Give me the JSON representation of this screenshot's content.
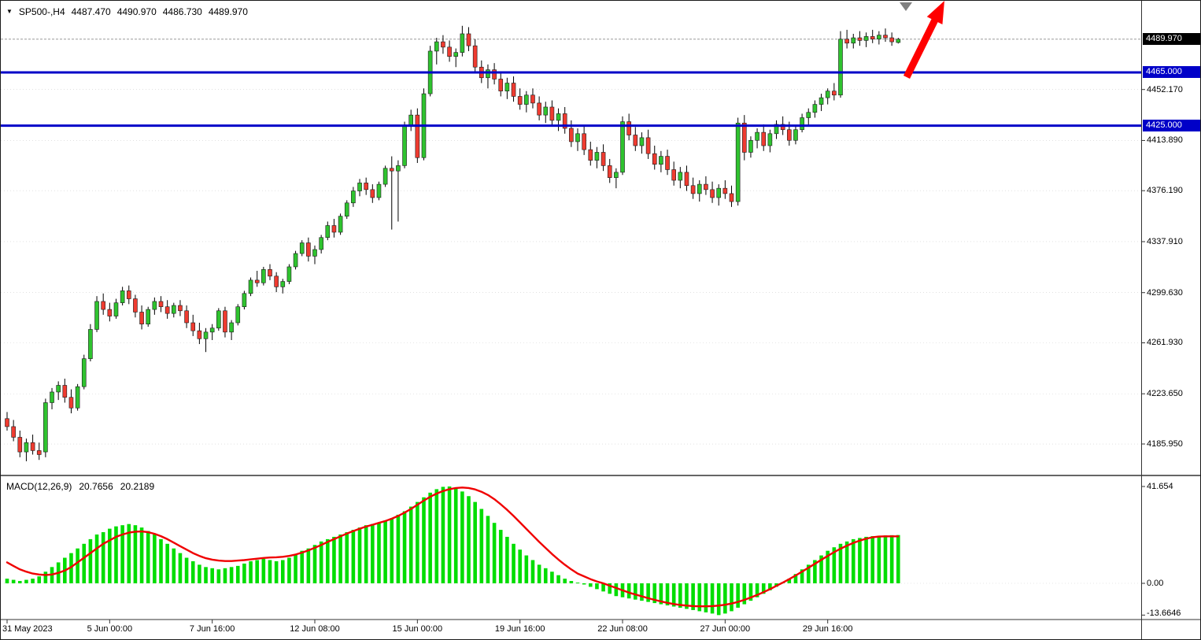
{
  "header": {
    "dropdown_glyph": "▼",
    "symbol_period": "SP500-,H4",
    "open": "4487.470",
    "high": "4490.970",
    "low": "4486.730",
    "close": "4489.970"
  },
  "price_axis": {
    "tick_labels": [
      "4452.170",
      "4413.890",
      "4376.190",
      "4337.910",
      "4299.630",
      "4261.930",
      "4223.650",
      "4185.950"
    ],
    "current_tag": "4489.970",
    "level_tags": [
      "4465.000",
      "4425.000"
    ]
  },
  "macd_panel": {
    "label": "MACD(12,26,9)",
    "macd_value": "20.7656",
    "signal_value": "20.2189",
    "axis_labels": [
      "41.654",
      "0.00",
      "-13.6646"
    ]
  },
  "x_axis": {
    "labels": [
      "31 May 2023",
      "5 Jun 00:00",
      "7 Jun 16:00",
      "12 Jun 08:00",
      "15 Jun 00:00",
      "19 Jun 16:00",
      "22 Jun 08:00",
      "27 Jun 00:00",
      "29 Jun 16:00"
    ]
  },
  "colors": {
    "up": "#2fc32f",
    "down": "#ef3b30",
    "wick": "#000000",
    "candle_border": "#1a1a1a",
    "level_line": "#0000c8",
    "histogram": "#00dd00",
    "signal": "#f00000",
    "current_price_line": "#9a9a9a",
    "grid": "#cfcfcf",
    "axis_line": "#333333",
    "tag_current_bg": "#000000",
    "tag_level_bg": "#0000c8",
    "arrow": "#ff0000",
    "marker": "#808080"
  },
  "chart_data": {
    "type": "candlestick",
    "symbol": "SP500-",
    "timeframe": "H4",
    "title": "SP500-,H4",
    "current_price": 4489.97,
    "last_bar_ohlc": [
      4487.47,
      4490.97,
      4486.73,
      4489.97
    ],
    "levels": [
      4465.0,
      4425.0
    ],
    "y_ticks": [
      4452.17,
      4413.89,
      4376.19,
      4337.91,
      4299.63,
      4261.93,
      4223.65,
      4185.95
    ],
    "y_range_hint": [
      4170,
      4515
    ],
    "x_tick_labels": [
      "31 May 2023",
      "5 Jun 00:00",
      "7 Jun 16:00",
      "12 Jun 08:00",
      "15 Jun 00:00",
      "19 Jun 16:00",
      "22 Jun 08:00",
      "27 Jun 00:00",
      "29 Jun 16:00"
    ],
    "x_tick_bar_indexes": [
      0,
      16,
      32,
      48,
      64,
      80,
      96,
      112,
      128
    ],
    "candles": [
      [
        4205,
        4210,
        4196,
        4199
      ],
      [
        4199,
        4204,
        4188,
        4191
      ],
      [
        4191,
        4196,
        4176,
        4180
      ],
      [
        4180,
        4190,
        4173,
        4187
      ],
      [
        4187,
        4193,
        4178,
        4181
      ],
      [
        4181,
        4187,
        4174,
        4178
      ],
      [
        4180,
        4220,
        4176,
        4217
      ],
      [
        4217,
        4228,
        4212,
        4225
      ],
      [
        4225,
        4233,
        4219,
        4230
      ],
      [
        4230,
        4235,
        4217,
        4221
      ],
      [
        4221,
        4227,
        4209,
        4213
      ],
      [
        4213,
        4231,
        4211,
        4229
      ],
      [
        4229,
        4253,
        4227,
        4250
      ],
      [
        4250,
        4276,
        4248,
        4272
      ],
      [
        4272,
        4297,
        4270,
        4293
      ],
      [
        4293,
        4299,
        4283,
        4287
      ],
      [
        4287,
        4292,
        4278,
        4282
      ],
      [
        4282,
        4295,
        4280,
        4292
      ],
      [
        4292,
        4304,
        4290,
        4301
      ],
      [
        4301,
        4305,
        4291,
        4295
      ],
      [
        4295,
        4298,
        4281,
        4285
      ],
      [
        4285,
        4290,
        4272,
        4276
      ],
      [
        4276,
        4289,
        4274,
        4287
      ],
      [
        4287,
        4296,
        4283,
        4293
      ],
      [
        4293,
        4297,
        4285,
        4289
      ],
      [
        4289,
        4294,
        4280,
        4284
      ],
      [
        4284,
        4292,
        4281,
        4290
      ],
      [
        4290,
        4294,
        4282,
        4286
      ],
      [
        4286,
        4290,
        4273,
        4277
      ],
      [
        4277,
        4283,
        4267,
        4271
      ],
      [
        4271,
        4277,
        4261,
        4265
      ],
      [
        4265,
        4273,
        4255,
        4270
      ],
      [
        4270,
        4276,
        4264,
        4273
      ],
      [
        4273,
        4288,
        4271,
        4286
      ],
      [
        4286,
        4289,
        4266,
        4270
      ],
      [
        4270,
        4279,
        4264,
        4277
      ],
      [
        4277,
        4291,
        4275,
        4289
      ],
      [
        4289,
        4301,
        4287,
        4299
      ],
      [
        4299,
        4311,
        4297,
        4309
      ],
      [
        4309,
        4316,
        4304,
        4307
      ],
      [
        4307,
        4319,
        4305,
        4317
      ],
      [
        4317,
        4321,
        4309,
        4312
      ],
      [
        4312,
        4315,
        4300,
        4304
      ],
      [
        4304,
        4310,
        4299,
        4308
      ],
      [
        4308,
        4321,
        4306,
        4319
      ],
      [
        4319,
        4331,
        4317,
        4329
      ],
      [
        4329,
        4339,
        4327,
        4337
      ],
      [
        4337,
        4341,
        4323,
        4327
      ],
      [
        4327,
        4335,
        4321,
        4332
      ],
      [
        4332,
        4343,
        4329,
        4341
      ],
      [
        4341,
        4353,
        4339,
        4350
      ],
      [
        4350,
        4355,
        4341,
        4345
      ],
      [
        4345,
        4359,
        4343,
        4357
      ],
      [
        4357,
        4369,
        4355,
        4367
      ],
      [
        4367,
        4379,
        4364,
        4376
      ],
      [
        4376,
        4385,
        4372,
        4382
      ],
      [
        4382,
        4386,
        4373,
        4377
      ],
      [
        4377,
        4381,
        4367,
        4371
      ],
      [
        4371,
        4383,
        4369,
        4381
      ],
      [
        4381,
        4395,
        4379,
        4393
      ],
      [
        4393,
        4402,
        4347,
        4391
      ],
      [
        4391,
        4399,
        4353,
        4395
      ],
      [
        4395,
        4428,
        4393,
        4425
      ],
      [
        4425,
        4437,
        4421,
        4433
      ],
      [
        4433,
        4438,
        4397,
        4401
      ],
      [
        4401,
        4453,
        4399,
        4449
      ],
      [
        4449,
        4485,
        4447,
        4481
      ],
      [
        4481,
        4491,
        4471,
        4488
      ],
      [
        4488,
        4493,
        4479,
        4484
      ],
      [
        4484,
        4489,
        4473,
        4477
      ],
      [
        4477,
        4483,
        4469,
        4480
      ],
      [
        4480,
        4500,
        4477,
        4494
      ],
      [
        4494,
        4499,
        4481,
        4485
      ],
      [
        4485,
        4490,
        4465,
        4469
      ],
      [
        4469,
        4474,
        4457,
        4461
      ],
      [
        4461,
        4471,
        4453,
        4467
      ],
      [
        4467,
        4472,
        4456,
        4460
      ],
      [
        4460,
        4465,
        4447,
        4451
      ],
      [
        4451,
        4461,
        4445,
        4457
      ],
      [
        4457,
        4462,
        4443,
        4447
      ],
      [
        4447,
        4453,
        4437,
        4441
      ],
      [
        4441,
        4451,
        4435,
        4448
      ],
      [
        4448,
        4453,
        4438,
        4442
      ],
      [
        4442,
        4447,
        4429,
        4433
      ],
      [
        4433,
        4443,
        4427,
        4439
      ],
      [
        4439,
        4444,
        4425,
        4429
      ],
      [
        4429,
        4438,
        4421,
        4434
      ],
      [
        4434,
        4439,
        4419,
        4423
      ],
      [
        4423,
        4429,
        4409,
        4413
      ],
      [
        4413,
        4423,
        4406,
        4419
      ],
      [
        4419,
        4425,
        4403,
        4407
      ],
      [
        4407,
        4413,
        4395,
        4399
      ],
      [
        4399,
        4409,
        4393,
        4405
      ],
      [
        4405,
        4411,
        4391,
        4395
      ],
      [
        4395,
        4400,
        4382,
        4386
      ],
      [
        4386,
        4393,
        4378,
        4390
      ],
      [
        4390,
        4432,
        4388,
        4428
      ],
      [
        4428,
        4434,
        4414,
        4418
      ],
      [
        4418,
        4424,
        4406,
        4410
      ],
      [
        4410,
        4420,
        4404,
        4416
      ],
      [
        4416,
        4422,
        4400,
        4404
      ],
      [
        4404,
        4410,
        4392,
        4396
      ],
      [
        4396,
        4406,
        4390,
        4402
      ],
      [
        4402,
        4407,
        4388,
        4392
      ],
      [
        4392,
        4398,
        4380,
        4384
      ],
      [
        4384,
        4394,
        4378,
        4390
      ],
      [
        4390,
        4395,
        4376,
        4380
      ],
      [
        4380,
        4386,
        4370,
        4374
      ],
      [
        4374,
        4384,
        4368,
        4381
      ],
      [
        4381,
        4387,
        4373,
        4377
      ],
      [
        4377,
        4383,
        4367,
        4371
      ],
      [
        4371,
        4381,
        4365,
        4378
      ],
      [
        4378,
        4384,
        4370,
        4374
      ],
      [
        4374,
        4380,
        4364,
        4368
      ],
      [
        4368,
        4431,
        4365,
        4427
      ],
      [
        4427,
        4433,
        4399,
        4405
      ],
      [
        4405,
        4417,
        4401,
        4414
      ],
      [
        4414,
        4423,
        4408,
        4420
      ],
      [
        4420,
        4426,
        4406,
        4410
      ],
      [
        4410,
        4422,
        4405,
        4419
      ],
      [
        4419,
        4429,
        4415,
        4426
      ],
      [
        4426,
        4432,
        4418,
        4422
      ],
      [
        4422,
        4428,
        4410,
        4414
      ],
      [
        4414,
        4425,
        4411,
        4422
      ],
      [
        4422,
        4434,
        4420,
        4431
      ],
      [
        4431,
        4438,
        4425,
        4435
      ],
      [
        4435,
        4444,
        4431,
        4441
      ],
      [
        4441,
        4449,
        4436,
        4446
      ],
      [
        4446,
        4453,
        4441,
        4451
      ],
      [
        4451,
        4457,
        4444,
        4448
      ],
      [
        4448,
        4496,
        4446,
        4490
      ],
      [
        4490,
        4497,
        4483,
        4487
      ],
      [
        4487,
        4494,
        4483,
        4491
      ],
      [
        4491,
        4496,
        4485,
        4489
      ],
      [
        4489,
        4495,
        4484,
        4492
      ],
      [
        4492,
        4497,
        4487,
        4490
      ],
      [
        4490,
        4496,
        4486,
        4493
      ],
      [
        4493,
        4498,
        4488,
        4491
      ],
      [
        4491,
        4495,
        4485,
        4488
      ],
      [
        4487.47,
        4490.97,
        4486.73,
        4489.97
      ]
    ],
    "macd": {
      "params": [
        12,
        26,
        9
      ],
      "last_macd": 20.7656,
      "last_signal": 20.2189,
      "axis_ticks": [
        41.654,
        0,
        -13.6646
      ],
      "histogram": [
        2,
        1.5,
        1,
        1.5,
        2,
        3,
        5,
        7,
        9,
        11,
        13,
        15,
        17,
        19,
        21,
        22,
        23.5,
        24.5,
        25,
        25.5,
        25,
        24,
        22.5,
        21,
        19,
        17,
        15,
        13,
        11,
        9.5,
        8,
        7,
        6.5,
        6,
        6.5,
        7,
        7.5,
        8.5,
        9.5,
        10,
        10.5,
        10,
        9.5,
        10,
        11,
        12.5,
        14,
        15,
        16.5,
        18,
        19,
        20,
        21,
        22,
        23,
        24,
        25,
        25.5,
        26,
        27,
        28,
        29.5,
        31,
        33,
        35,
        37,
        39,
        40.5,
        41.5,
        41.654,
        41,
        39.5,
        37.5,
        35,
        32,
        29,
        26,
        23,
        20,
        17,
        14.5,
        12,
        10,
        8,
        6.5,
        5,
        3.5,
        2,
        1,
        0.3,
        -0.5,
        -1.5,
        -2.5,
        -3.5,
        -4.5,
        -5.5,
        -6,
        -6.5,
        -7,
        -7.5,
        -8,
        -8.5,
        -9,
        -9.5,
        -10,
        -10.5,
        -11,
        -11.5,
        -12,
        -12.5,
        -13,
        -13.6646,
        -13,
        -12,
        -10.5,
        -9,
        -7.5,
        -6,
        -4.5,
        -3,
        -1.5,
        0.5,
        2,
        4,
        6,
        8,
        10,
        12,
        14,
        15.5,
        17,
        18,
        19,
        19.5,
        20,
        20.3,
        20.5,
        20.6,
        20.7,
        20.7656
      ],
      "signal": [
        9,
        7.5,
        6,
        5,
        4.2,
        3.8,
        3.6,
        3.8,
        4.5,
        5.5,
        7,
        9,
        11,
        13,
        15,
        17,
        18.5,
        20,
        21,
        21.8,
        22.2,
        22.3,
        22,
        21.3,
        20.3,
        19,
        17.5,
        16,
        14.5,
        13,
        11.8,
        10.8,
        10.2,
        9.8,
        9.6,
        9.6,
        9.8,
        10,
        10.3,
        10.6,
        10.9,
        11.1,
        11.2,
        11.4,
        11.8,
        12.4,
        13.2,
        14.2,
        15.3,
        16.5,
        17.8,
        19,
        20.2,
        21.4,
        22.5,
        23.5,
        24.4,
        25.2,
        26,
        26.8,
        27.8,
        29,
        30.4,
        32,
        33.8,
        35.6,
        37.2,
        38.6,
        39.7,
        40.5,
        41,
        41.2,
        41,
        40.4,
        39.4,
        38,
        36.2,
        34,
        31.6,
        29,
        26.2,
        23.4,
        20.6,
        17.8,
        15.2,
        12.6,
        10.2,
        8,
        6,
        4.2,
        3,
        1.8,
        0.8,
        0,
        -1,
        -2,
        -3,
        -4,
        -4.8,
        -5.6,
        -6.4,
        -7.1,
        -7.8,
        -8.4,
        -8.9,
        -9.3,
        -9.6,
        -9.8,
        -9.9,
        -9.9,
        -9.8,
        -9.6,
        -9.2,
        -8.7,
        -8,
        -7.1,
        -6.1,
        -5,
        -3.8,
        -2.5,
        -1.1,
        0.3,
        1.8,
        3.4,
        5,
        6.7,
        8.4,
        10.1,
        11.8,
        13.4,
        14.9,
        16.2,
        17.4,
        18.4,
        19.2,
        19.8,
        20.1,
        20.2,
        20.2,
        20.2189
      ]
    },
    "annotations": {
      "arrow": {
        "color": "#ff0000",
        "from": [
          1151,
          97
        ],
        "to": [
          1199,
          0
        ]
      },
      "marker": {
        "color": "#808080",
        "points": [
          [
            1142,
            2
          ],
          [
            1158,
            2
          ],
          [
            1150,
            13
          ]
        ]
      }
    }
  }
}
